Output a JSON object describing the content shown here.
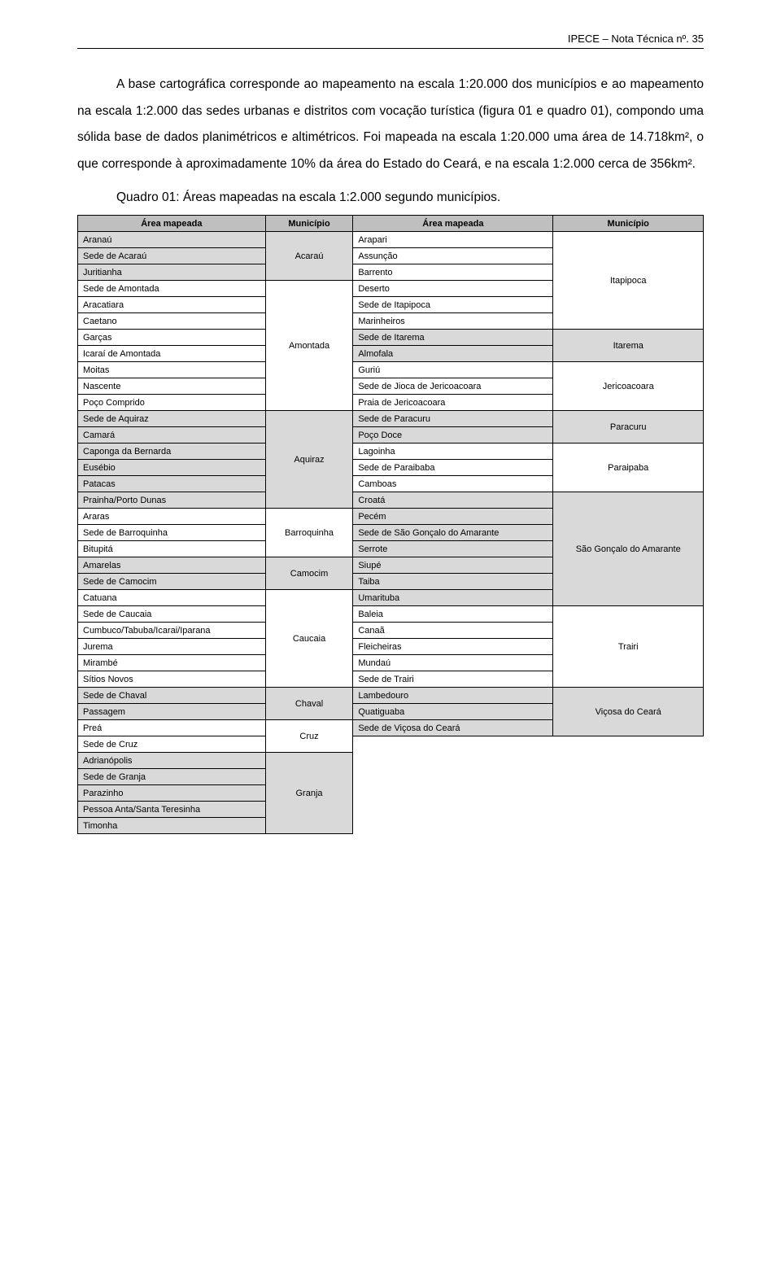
{
  "header": {
    "title": "IPECE – Nota Técnica nº. 35"
  },
  "paragraph": "A base cartográfica corresponde ao mapeamento na escala 1:20.000 dos municípios e ao mapeamento na escala 1:2.000 das sedes urbanas e distritos com vocação turística (figura 01 e quadro 01), compondo uma sólida base de dados planimétricos e altimétricos. Foi mapeada na escala 1:20.000 uma área de 14.718km², o que corresponde à aproximadamente 10% da área do Estado do Ceará, e na escala 1:2.000 cerca de 356km².",
  "caption": "Quadro 01: Áreas mapeadas na escala 1:2.000 segundo municípios.",
  "table": {
    "headers": [
      "Área mapeada",
      "Município",
      "Área mapeada",
      "Município"
    ],
    "colwidths": [
      "30%",
      "14%",
      "32%",
      "24%"
    ],
    "left_col": [
      {
        "label": "Aranaú",
        "shade": true
      },
      {
        "label": "Sede de Acaraú",
        "shade": true
      },
      {
        "label": "Juritianha",
        "shade": true
      },
      {
        "label": "Sede de Amontada",
        "shade": false
      },
      {
        "label": "Aracatiara",
        "shade": false
      },
      {
        "label": "Caetano",
        "shade": false
      },
      {
        "label": "Garças",
        "shade": false
      },
      {
        "label": "Icaraí de Amontada",
        "shade": false
      },
      {
        "label": "Moitas",
        "shade": false
      },
      {
        "label": "Nascente",
        "shade": false
      },
      {
        "label": "Poço Comprido",
        "shade": false
      },
      {
        "label": "Sede de Aquiraz",
        "shade": true
      },
      {
        "label": "Camará",
        "shade": true
      },
      {
        "label": "Caponga da Bernarda",
        "shade": true
      },
      {
        "label": "Eusébio",
        "shade": true
      },
      {
        "label": "Patacas",
        "shade": true
      },
      {
        "label": "Prainha/Porto Dunas",
        "shade": true
      },
      {
        "label": "Araras",
        "shade": false
      },
      {
        "label": "Sede de Barroquinha",
        "shade": false
      },
      {
        "label": "Bitupitá",
        "shade": false
      },
      {
        "label": "Amarelas",
        "shade": true
      },
      {
        "label": "Sede de Camocim",
        "shade": true
      },
      {
        "label": "Catuana",
        "shade": false
      },
      {
        "label": "Sede de Caucaia",
        "shade": false
      },
      {
        "label": "Cumbuco/Tabuba/Icarai/Iparana",
        "shade": false
      },
      {
        "label": "Jurema",
        "shade": false
      },
      {
        "label": "Mirambé",
        "shade": false
      },
      {
        "label": "Sítios Novos",
        "shade": false
      },
      {
        "label": "Sede de Chaval",
        "shade": true
      },
      {
        "label": "Passagem",
        "shade": true
      },
      {
        "label": "Preá",
        "shade": false
      },
      {
        "label": "Sede de Cruz",
        "shade": false
      },
      {
        "label": "Adrianópolis",
        "shade": true
      },
      {
        "label": "Sede de Granja",
        "shade": true
      },
      {
        "label": "Parazinho",
        "shade": true
      },
      {
        "label": "Pessoa Anta/Santa Teresinha",
        "shade": true
      },
      {
        "label": "Timonha",
        "shade": true
      }
    ],
    "left_groups": [
      {
        "label": "Acaraú",
        "span": 3,
        "shade": true
      },
      {
        "label": "Amontada",
        "span": 8,
        "shade": false
      },
      {
        "label": "Aquiraz",
        "span": 6,
        "shade": true
      },
      {
        "label": "Barroquinha",
        "span": 3,
        "shade": false
      },
      {
        "label": "Camocim",
        "span": 2,
        "shade": true
      },
      {
        "label": "Caucaia",
        "span": 6,
        "shade": false
      },
      {
        "label": "Chaval",
        "span": 2,
        "shade": true
      },
      {
        "label": "Cruz",
        "span": 2,
        "shade": false
      },
      {
        "label": "Granja",
        "span": 5,
        "shade": true
      }
    ],
    "right_col": [
      {
        "label": "Arapari",
        "shade": false
      },
      {
        "label": "Assunção",
        "shade": false
      },
      {
        "label": "Barrento",
        "shade": false
      },
      {
        "label": "Deserto",
        "shade": false
      },
      {
        "label": "Sede de Itapipoca",
        "shade": false
      },
      {
        "label": "Marinheiros",
        "shade": false
      },
      {
        "label": "Sede de Itarema",
        "shade": true
      },
      {
        "label": "Almofala",
        "shade": true
      },
      {
        "label": "Guriú",
        "shade": false
      },
      {
        "label": "Sede de Jioca de Jericoacoara",
        "shade": false
      },
      {
        "label": "Praia de Jericoacoara",
        "shade": false
      },
      {
        "label": "Sede de Paracuru",
        "shade": true
      },
      {
        "label": "Poço Doce",
        "shade": true
      },
      {
        "label": "Lagoinha",
        "shade": false
      },
      {
        "label": "Sede de Paraibaba",
        "shade": false
      },
      {
        "label": "Camboas",
        "shade": false
      },
      {
        "label": "Croatá",
        "shade": true
      },
      {
        "label": "Pecém",
        "shade": true
      },
      {
        "label": "Sede de São Gonçalo do Amarante",
        "shade": true
      },
      {
        "label": "Serrote",
        "shade": true
      },
      {
        "label": "Siupé",
        "shade": true
      },
      {
        "label": "Taiba",
        "shade": true
      },
      {
        "label": "Umarituba",
        "shade": true
      },
      {
        "label": "Baleia",
        "shade": false
      },
      {
        "label": "Canaã",
        "shade": false
      },
      {
        "label": "Fleicheiras",
        "shade": false
      },
      {
        "label": "Mundaú",
        "shade": false
      },
      {
        "label": "Sede de Trairi",
        "shade": false
      },
      {
        "label": "Lambedouro",
        "shade": true
      },
      {
        "label": "Quatiguaba",
        "shade": true
      },
      {
        "label": "Sede de Viçosa do Ceará",
        "shade": true
      }
    ],
    "right_groups": [
      {
        "label": "Itapipoca",
        "span": 6,
        "shade": false
      },
      {
        "label": "Itarema",
        "span": 2,
        "shade": true
      },
      {
        "label": "Jericoacoara",
        "span": 3,
        "shade": false
      },
      {
        "label": "Paracuru",
        "span": 2,
        "shade": true
      },
      {
        "label": "Paraipaba",
        "span": 3,
        "shade": false
      },
      {
        "label": "São Gonçalo do Amarante",
        "span": 7,
        "shade": true
      },
      {
        "label": "Trairi",
        "span": 5,
        "shade": false
      },
      {
        "label": "Viçosa do Ceará",
        "span": 3,
        "shade": true
      }
    ]
  },
  "colors": {
    "header_bg": "#bfbfbf",
    "shade_bg": "#d9d9d9",
    "text": "#000000",
    "background": "#ffffff",
    "border": "#000000"
  },
  "typography": {
    "header_fontsize": 13,
    "body_fontsize": 15.5,
    "table_fontsize": 11,
    "body_line_height": 2.1,
    "font_family": "Arial"
  }
}
